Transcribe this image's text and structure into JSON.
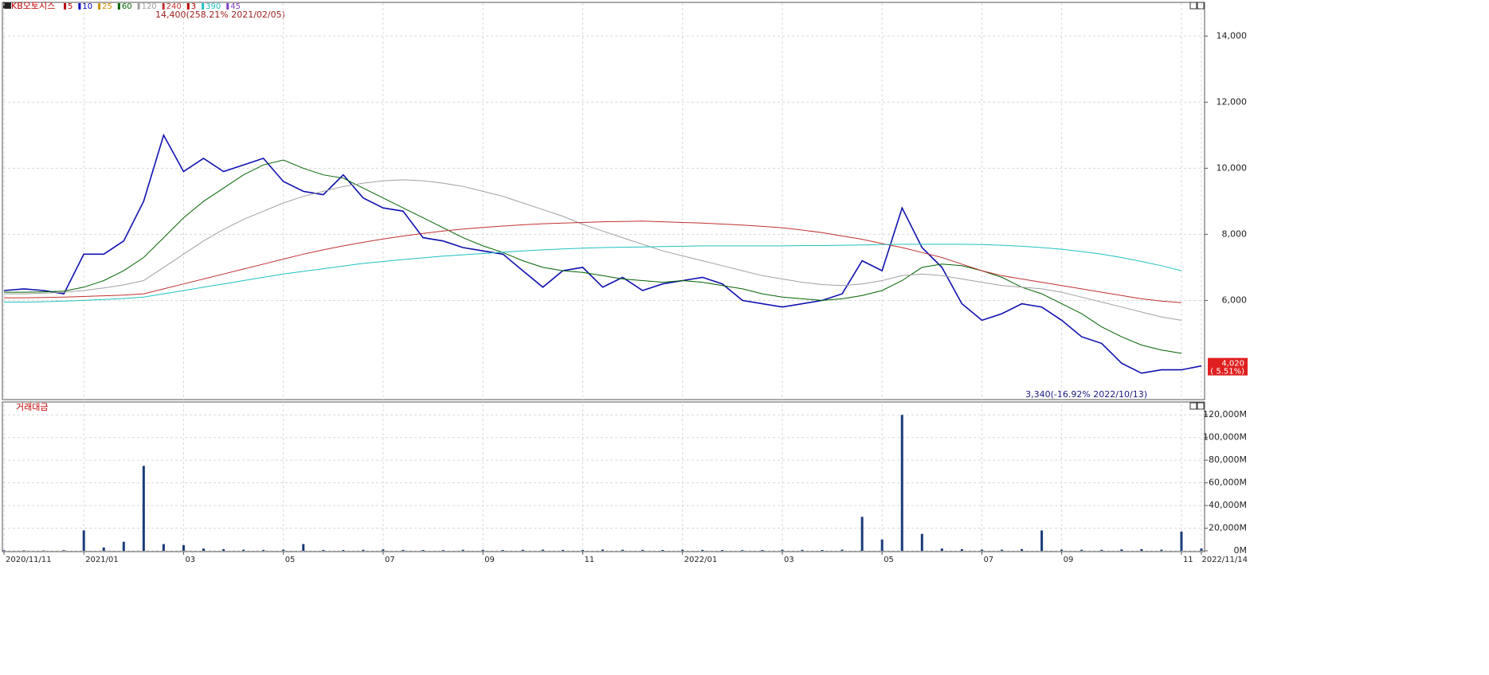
{
  "chart_data": [
    {
      "type": "line",
      "title": "KB오토시스",
      "indicators": [
        {
          "name": "5",
          "color": "#c00000"
        },
        {
          "name": "10",
          "color": "#0000c0"
        },
        {
          "name": "25",
          "color": "#c89000"
        },
        {
          "name": "60",
          "color": "#006400"
        },
        {
          "name": "120",
          "color": "#a0a0a0"
        },
        {
          "name": "240",
          "color": "#c03030"
        },
        {
          "name": "3",
          "color": "#c00000"
        },
        {
          "name": "390",
          "color": "#20c0c0"
        },
        {
          "name": "45",
          "color": "#8040c0"
        }
      ],
      "series": [
        {
          "name": "KB오토시스",
          "color": "#1010b0",
          "values": [
            6300,
            6350,
            6300,
            6200,
            7400,
            7400,
            7800,
            9000,
            11000,
            9900,
            10300,
            9900,
            10100,
            10300,
            9600,
            9300,
            9200,
            9800,
            9100,
            8800,
            8700,
            7900,
            7800,
            7600,
            7500,
            7400,
            6900,
            6400,
            6900,
            7000,
            6400,
            6700,
            6300,
            6500,
            6600,
            6700,
            6500,
            6000,
            5900,
            5800,
            5900,
            6000,
            6200,
            7200,
            6900,
            8800,
            7600,
            7000,
            5900,
            5400,
            5600,
            5900,
            5800,
            5400,
            4900,
            4700,
            4100,
            3800,
            3900,
            3900,
            4020
          ]
        },
        {
          "name": "60",
          "color": "#006400",
          "values": [
            6250,
            6250,
            6260,
            6280,
            6400,
            6600,
            6900,
            7300,
            7900,
            8500,
            9000,
            9400,
            9800,
            10100,
            10250,
            10000,
            9800,
            9700,
            9400,
            9100,
            8800,
            8500,
            8200,
            7900,
            7650,
            7450,
            7200,
            7000,
            6900,
            6850,
            6750,
            6650,
            6600,
            6550,
            6600,
            6550,
            6450,
            6350,
            6200,
            6100,
            6050,
            6000,
            6050,
            6150,
            6300,
            6600,
            7000,
            7100,
            7050,
            6900,
            6700,
            6400,
            6200,
            5900,
            5600,
            5200,
            4900,
            4650,
            4500,
            4400,
            null
          ]
        },
        {
          "name": "120",
          "color": "#a0a0a0",
          "values": [
            6200,
            6200,
            6220,
            6250,
            6300,
            6380,
            6470,
            6600,
            7000,
            7400,
            7800,
            8150,
            8450,
            8700,
            8950,
            9150,
            9300,
            9450,
            9550,
            9620,
            9650,
            9620,
            9550,
            9450,
            9300,
            9150,
            8950,
            8750,
            8550,
            8300,
            8100,
            7900,
            7700,
            7500,
            7350,
            7200,
            7050,
            6900,
            6750,
            6650,
            6550,
            6480,
            6450,
            6500,
            6600,
            6750,
            6800,
            6750,
            6650,
            6550,
            6450,
            6400,
            6350,
            6250,
            6100,
            5950,
            5800,
            5650,
            5500,
            5400,
            null
          ]
        },
        {
          "name": "240",
          "color": "#c03030",
          "values": [
            6080,
            6080,
            6090,
            6100,
            6120,
            6140,
            6160,
            6200,
            6350,
            6500,
            6650,
            6800,
            6950,
            7100,
            7250,
            7400,
            7530,
            7650,
            7760,
            7860,
            7950,
            8030,
            8100,
            8160,
            8210,
            8250,
            8290,
            8320,
            8340,
            8360,
            8380,
            8390,
            8400,
            8380,
            8360,
            8340,
            8310,
            8280,
            8240,
            8200,
            8130,
            8050,
            7950,
            7850,
            7720,
            7600,
            7450,
            7300,
            7100,
            6900,
            6750,
            6650,
            6550,
            6450,
            6350,
            6250,
            6150,
            6050,
            5980,
            5930,
            null
          ]
        },
        {
          "name": "390",
          "color": "#20c0c0",
          "values": [
            5950,
            5950,
            5960,
            5980,
            6000,
            6030,
            6060,
            6100,
            6200,
            6300,
            6400,
            6500,
            6600,
            6700,
            6800,
            6880,
            6960,
            7040,
            7120,
            7180,
            7240,
            7290,
            7340,
            7380,
            7420,
            7460,
            7500,
            7530,
            7560,
            7580,
            7600,
            7610,
            7620,
            7630,
            7640,
            7650,
            7650,
            7650,
            7650,
            7650,
            7660,
            7660,
            7670,
            7680,
            7690,
            7700,
            7700,
            7700,
            7700,
            7690,
            7670,
            7640,
            7600,
            7550,
            7480,
            7400,
            7300,
            7180,
            7050,
            6900,
            null
          ]
        }
      ],
      "ylim": [
        3000,
        14850
      ],
      "yticks": [
        {
          "value": 6000,
          "label": "6,000"
        },
        {
          "value": 8000,
          "label": "8,000"
        },
        {
          "value": 10000,
          "label": "10,000"
        },
        {
          "value": 12000,
          "label": "12,000"
        },
        {
          "value": 14000,
          "label": "14,000"
        }
      ],
      "grid": true,
      "high_annotation": "14,400(258.21% 2021/02/05)",
      "low_annotation": "3,340(-16.92% 2022/10/13)",
      "last_price": {
        "value": 4020,
        "label": "4,020",
        "change": "( 5.51%)"
      }
    },
    {
      "type": "bar",
      "title": "거래대금",
      "color": "#1a3c7a",
      "categories": [
        "2020/11/11",
        null,
        null,
        null,
        "2021/01",
        null,
        null,
        null,
        null,
        "03",
        null,
        null,
        null,
        null,
        "05",
        null,
        null,
        null,
        null,
        "07",
        null,
        null,
        null,
        null,
        "09",
        null,
        null,
        null,
        null,
        "11",
        null,
        null,
        null,
        null,
        "2022/01",
        null,
        null,
        null,
        null,
        "03",
        null,
        null,
        null,
        null,
        "05",
        null,
        null,
        null,
        null,
        "07",
        null,
        null,
        null,
        "09",
        null,
        null,
        null,
        null,
        null,
        "11",
        "2022/11/14"
      ],
      "values": [
        500,
        400,
        300,
        600,
        18000,
        3000,
        8000,
        75000,
        6000,
        5000,
        2000,
        1500,
        1000,
        800,
        1000,
        6000,
        800,
        700,
        900,
        1200,
        800,
        700,
        600,
        900,
        800,
        700,
        900,
        1000,
        800,
        700,
        1100,
        900,
        800,
        700,
        900,
        800,
        700,
        600,
        700,
        900,
        800,
        700,
        1000,
        30000,
        10000,
        120000,
        15000,
        2000,
        1500,
        1000,
        1000,
        1500,
        18000,
        1000,
        900,
        800,
        1200,
        1500,
        1000,
        17000,
        2000
      ],
      "ylim": [
        0,
        130000
      ],
      "yticks": [
        {
          "value": 0,
          "label": "0M"
        },
        {
          "value": 20000,
          "label": "20,000M"
        },
        {
          "value": 40000,
          "label": "40,000M"
        },
        {
          "value": 60000,
          "label": "60,000M"
        },
        {
          "value": 80000,
          "label": "80,000M"
        },
        {
          "value": 100000,
          "label": "100,000M"
        },
        {
          "value": 120000,
          "label": "120,000M"
        }
      ],
      "grid": true
    }
  ]
}
